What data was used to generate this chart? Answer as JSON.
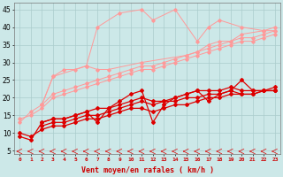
{
  "background_color": "#cce8e8",
  "grid_color": "#aacccc",
  "light_pink_color": "#ff9999",
  "med_pink_color": "#ff7777",
  "red_color": "#dd0000",
  "xlabel": "Vent moyen/en rafales ( km/h )",
  "ylabel_ticks": [
    5,
    10,
    15,
    20,
    25,
    30,
    35,
    40,
    45
  ],
  "xlim": [
    -0.5,
    23.5
  ],
  "ylim": [
    4,
    47
  ],
  "lp_volatile_x": [
    2,
    3,
    6,
    7,
    9,
    11,
    12,
    14,
    16,
    17,
    18,
    20,
    22,
    23
  ],
  "lp_volatile_y": [
    18,
    26,
    29,
    40,
    44,
    45,
    42,
    45,
    36,
    40,
    42,
    40,
    39,
    40
  ],
  "lp_mid_x": [
    2,
    3,
    4,
    5,
    6,
    7,
    8,
    11,
    15,
    16,
    17,
    18,
    19,
    20,
    22,
    23
  ],
  "lp_mid_y": [
    18,
    26,
    28,
    28,
    29,
    28,
    28,
    30,
    32,
    33,
    35,
    36,
    36,
    38,
    39,
    39
  ],
  "lp_trend1_x": [
    0,
    1,
    2,
    3,
    4,
    5,
    6,
    7,
    8,
    9,
    10,
    11,
    12,
    13,
    14,
    15,
    16,
    17,
    18,
    19,
    20,
    21,
    22,
    23
  ],
  "lp_trend1_y": [
    13,
    16,
    18,
    21,
    22,
    23,
    24,
    25,
    26,
    27,
    28,
    29,
    29,
    30,
    31,
    32,
    33,
    34,
    35,
    36,
    37,
    37,
    38,
    39
  ],
  "lp_trend2_x": [
    0,
    1,
    2,
    3,
    4,
    5,
    6,
    7,
    8,
    9,
    10,
    11,
    12,
    13,
    14,
    15,
    16,
    17,
    18,
    19,
    20,
    21,
    22,
    23
  ],
  "lp_trend2_y": [
    14,
    15,
    17,
    20,
    21,
    22,
    23,
    24,
    25,
    26,
    27,
    28,
    28,
    29,
    30,
    31,
    32,
    33,
    34,
    35,
    36,
    36,
    37,
    38
  ],
  "rd1_x": [
    0,
    1,
    2,
    3,
    4,
    5,
    6,
    7,
    8,
    9,
    10,
    11,
    12,
    13,
    14,
    15,
    16,
    17,
    18,
    19,
    20,
    21,
    22,
    23
  ],
  "rd1_y": [
    9,
    8,
    13,
    14,
    14,
    15,
    16,
    13,
    17,
    19,
    21,
    22,
    13,
    18,
    20,
    21,
    22,
    19,
    21,
    22,
    25,
    22,
    22,
    22
  ],
  "rd2_x": [
    2,
    3,
    4,
    5,
    6,
    7,
    8,
    9,
    10,
    11,
    12,
    13,
    14,
    15,
    16,
    17,
    18,
    19,
    20,
    21,
    22,
    23
  ],
  "rd2_y": [
    13,
    14,
    14,
    15,
    16,
    17,
    17,
    18,
    19,
    20,
    19,
    19,
    20,
    21,
    22,
    22,
    22,
    23,
    22,
    22,
    22,
    23
  ],
  "rd3_x": [
    2,
    3,
    4,
    5,
    6,
    7,
    8,
    9,
    10,
    11,
    12,
    13,
    14,
    15,
    16,
    17,
    18,
    19,
    20,
    21,
    22,
    23
  ],
  "rd3_y": [
    12,
    13,
    13,
    14,
    15,
    15,
    16,
    17,
    18,
    19,
    18,
    19,
    19,
    20,
    20,
    21,
    21,
    22,
    21,
    21,
    22,
    22
  ],
  "rd4_x": [
    0,
    1,
    2,
    3,
    4,
    5,
    6,
    7,
    8,
    9,
    10,
    11,
    12,
    13,
    14,
    15,
    16,
    17,
    18,
    19,
    20,
    21,
    22,
    23
  ],
  "rd4_y": [
    10,
    9,
    11,
    12,
    12,
    13,
    14,
    14,
    15,
    16,
    17,
    17,
    16,
    17,
    18,
    18,
    19,
    20,
    20,
    21,
    21,
    21,
    22,
    22
  ]
}
